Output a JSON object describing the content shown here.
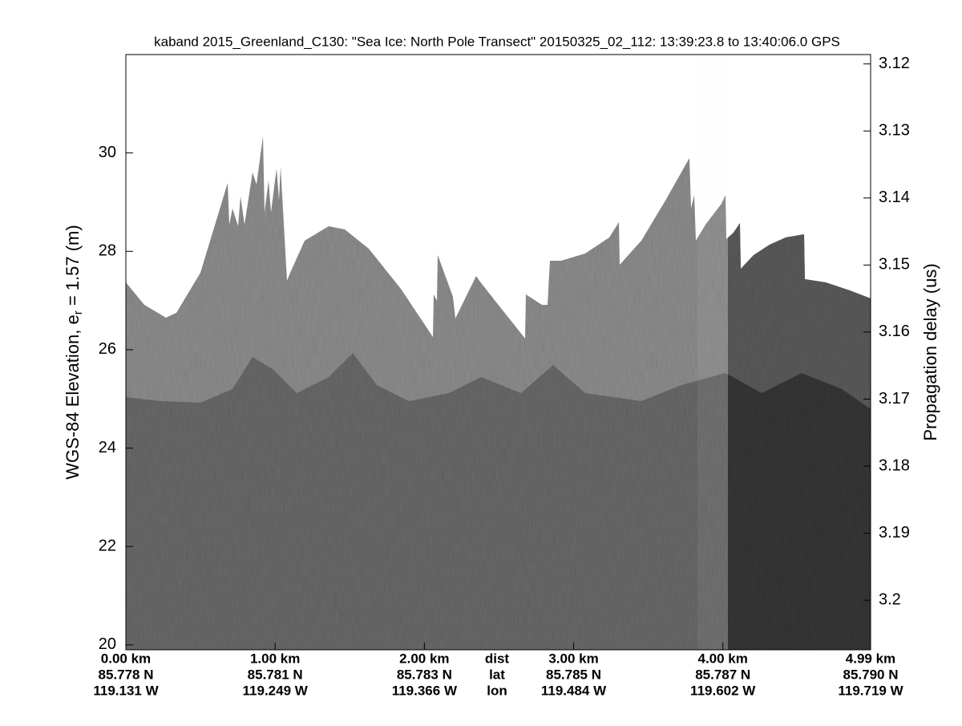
{
  "chart_data": {
    "type": "echogram",
    "title": "kaband 2015_Greenland_C130: \"Sea Ice: North Pole Transect\"  20150325_02_112: 13:39:23.8 to 13:40:06.0 GPS",
    "ylabel_parts": [
      "WGS-84 Elevation, e",
      "r",
      " = 1.57 (m)"
    ],
    "y2label": "Propagation delay (us)",
    "xlim": [
      0,
      4.99
    ],
    "xticks": [
      {
        "value": 0,
        "label": "0.00 km"
      },
      {
        "value": 1,
        "label": "1.00 km"
      },
      {
        "value": 2,
        "label": "2.00 km"
      },
      {
        "value": 3,
        "label": "3.00 km"
      },
      {
        "value": 4,
        "label": "4.00 km"
      },
      {
        "value": 4.99,
        "label": "4.99 km"
      }
    ],
    "lat_labels": [
      "85.778 N",
      "85.781 N",
      "85.783 N",
      "85.785 N",
      "85.787 N",
      "85.790 N"
    ],
    "lon_labels": [
      "119.131 W",
      "119.249 W",
      "119.366 W",
      "119.484 W",
      "119.602 W",
      "119.719 W"
    ],
    "row_names": [
      "dist",
      "lat",
      "lon"
    ],
    "ylim": [
      19.9,
      32
    ],
    "yticks": [
      20,
      22,
      24,
      26,
      28,
      30
    ],
    "y2lim": [
      3.1186,
      3.2074
    ],
    "y2ticks": [
      3.12,
      3.13,
      3.14,
      3.15,
      3.16,
      3.17,
      3.18,
      3.19,
      3.2
    ]
  }
}
